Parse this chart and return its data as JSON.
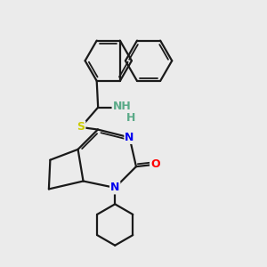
{
  "background_color": "#ebebeb",
  "bond_color": "#1a1a1a",
  "atom_colors": {
    "N": "#0000ee",
    "O": "#ff0000",
    "S": "#cccc00",
    "NH": "#5aaa88",
    "C": "#1a1a1a"
  },
  "figsize": [
    3.0,
    3.0
  ],
  "dpi": 100,
  "lw": 1.6,
  "lw_dbl": 1.3
}
